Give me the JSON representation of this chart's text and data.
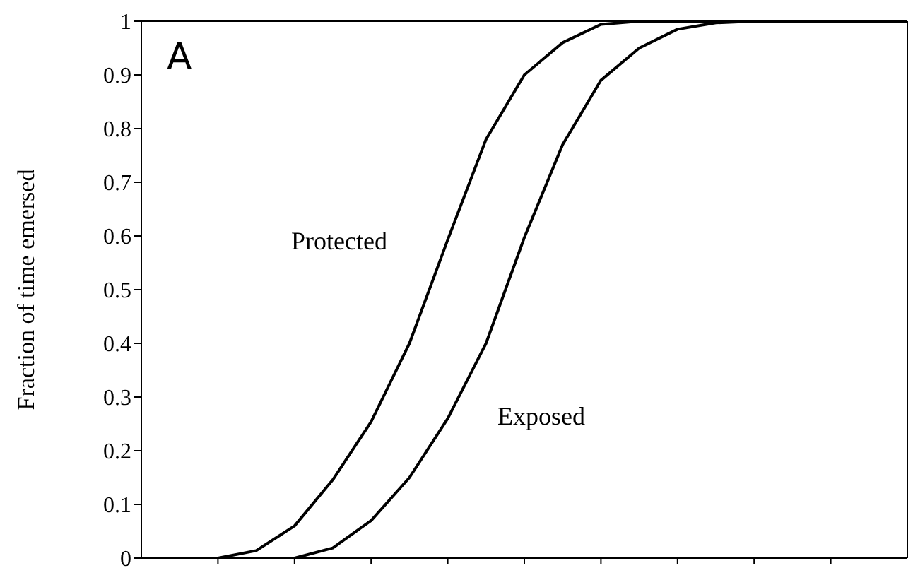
{
  "chart_data": {
    "type": "line",
    "title": "A",
    "ylabel": "Fraction of time emersed",
    "categories": [
      null,
      null,
      null,
      null,
      null,
      null,
      null,
      null,
      null,
      null,
      null,
      null,
      null,
      null,
      null,
      null,
      null,
      null,
      null,
      null,
      null
    ],
    "ylim": [
      0,
      1
    ],
    "yticks": [
      0,
      0.1,
      0.2,
      0.3,
      0.4,
      0.5,
      0.6,
      0.7,
      0.8,
      0.9,
      1
    ],
    "grid": false,
    "legend": false,
    "marker": "none",
    "line_style": "solid",
    "series": [
      {
        "name": "Protected",
        "color": "#000000",
        "values": [
          null,
          null,
          0,
          0.014,
          0.06,
          0.146,
          0.254,
          0.4,
          0.593,
          0.78,
          0.9,
          0.96,
          0.994,
          1,
          1,
          1,
          1,
          1,
          1,
          1,
          1
        ]
      },
      {
        "name": "Exposed",
        "color": "#000000",
        "values": [
          null,
          null,
          null,
          null,
          0,
          0.019,
          0.07,
          0.15,
          0.26,
          0.4,
          0.597,
          0.77,
          0.89,
          0.95,
          0.985,
          0.997,
          1,
          1,
          1,
          1,
          1
        ]
      }
    ]
  }
}
